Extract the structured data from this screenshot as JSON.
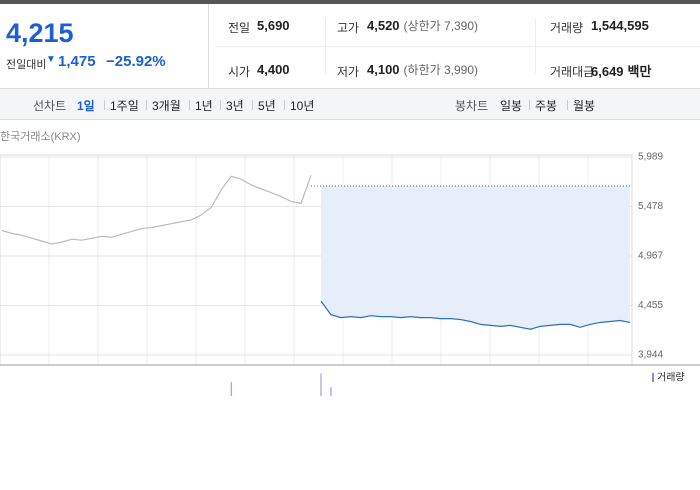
{
  "quote": {
    "price": "4,215",
    "change_label": "전일대비",
    "change": "1,475",
    "change_rate": "−25.92%",
    "stats": [
      {
        "label": "전일",
        "value": "5,690"
      },
      {
        "label": "고가",
        "value": "4,520",
        "note": "(상한가 7,390)"
      },
      {
        "label": "거래량",
        "value": "1,544,595"
      },
      {
        "label": "시가",
        "value": "4,400"
      },
      {
        "label": "저가",
        "value": "4,100",
        "note": "(하한가 3,990)"
      },
      {
        "label": "거래대금",
        "value": "6,649",
        "unit": "백만"
      }
    ]
  },
  "tabs": {
    "line_chart": "선차트",
    "periods": [
      "1일",
      "1주일",
      "3개월",
      "1년",
      "3년",
      "5년",
      "10년"
    ],
    "candle_chart": "봉차트",
    "candles": [
      "일봉",
      "주봉",
      "월봉"
    ]
  },
  "chart_data": {
    "type": "line",
    "source": "한국거래소(KRX)",
    "ylim": [
      3944,
      5989
    ],
    "yticks": [
      {
        "value": 3944,
        "label": "3,944"
      },
      {
        "value": 4455,
        "label": "4,455"
      },
      {
        "value": 4967,
        "label": "4,967"
      },
      {
        "value": 5478,
        "label": "5,478"
      },
      {
        "value": 5989,
        "label": "5,989"
      }
    ],
    "grid": true,
    "reference": 5690,
    "series": [
      {
        "color": "#bbbbbb",
        "values": [
          5230,
          5200,
          5180,
          5150,
          5120,
          5090,
          5110,
          5140,
          5130,
          5150,
          5170,
          5160,
          5190,
          5220,
          5250,
          5260,
          5280,
          5300,
          5320,
          5340,
          5390,
          5470,
          5650,
          5790,
          5760,
          5700,
          5660,
          5620,
          5580,
          5530,
          5510,
          5800,
          null,
          null,
          null,
          null,
          null,
          null,
          null,
          null,
          null,
          null,
          null,
          null,
          null,
          null,
          null,
          null,
          null,
          null,
          null,
          null,
          null,
          null,
          null,
          null,
          null,
          null,
          null,
          null,
          null,
          null,
          null,
          null
        ]
      },
      {
        "color": "#2e6fc4",
        "values": [
          null,
          null,
          null,
          null,
          null,
          null,
          null,
          null,
          null,
          null,
          null,
          null,
          null,
          null,
          null,
          null,
          null,
          null,
          null,
          null,
          null,
          null,
          null,
          null,
          null,
          null,
          null,
          null,
          null,
          null,
          null,
          null,
          4500,
          4360,
          4330,
          4340,
          4330,
          4350,
          4340,
          4340,
          4330,
          4340,
          4330,
          4330,
          4320,
          4320,
          4310,
          4290,
          4260,
          4250,
          4240,
          4250,
          4230,
          4210,
          4240,
          4250,
          4260,
          4260,
          4230,
          4260,
          4280,
          4290,
          4300,
          4280
        ]
      }
    ],
    "volume": {
      "name": "거래량",
      "color": "#9a86cc",
      "lim": [
        0,
        30
      ],
      "values": [
        null,
        null,
        null,
        null,
        null,
        null,
        null,
        null,
        null,
        null,
        null,
        null,
        null,
        null,
        null,
        null,
        null,
        null,
        null,
        null,
        null,
        null,
        null,
        16,
        null,
        null,
        null,
        null,
        null,
        null,
        null,
        null,
        26,
        10,
        null,
        null,
        null,
        null,
        null,
        null,
        null,
        null,
        null,
        null,
        null,
        null,
        null,
        null,
        null,
        null,
        null,
        null,
        null,
        null,
        null,
        null,
        null,
        null,
        null,
        null,
        null,
        null,
        null,
        null
      ]
    }
  }
}
